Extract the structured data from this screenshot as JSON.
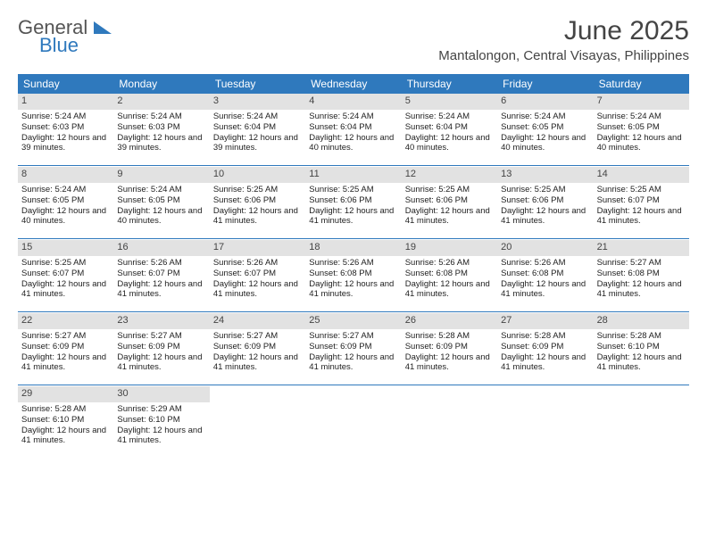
{
  "logo": {
    "general": "General",
    "blue": "Blue"
  },
  "title": "June 2025",
  "location": "Mantalongon, Central Visayas, Philippines",
  "colors": {
    "header_bg": "#2f79bd",
    "header_text": "#ffffff",
    "daynum_bg": "#e2e2e2",
    "page_bg": "#ffffff",
    "text": "#222222"
  },
  "day_headers": [
    "Sunday",
    "Monday",
    "Tuesday",
    "Wednesday",
    "Thursday",
    "Friday",
    "Saturday"
  ],
  "weeks": [
    [
      {
        "n": "1",
        "sr": "Sunrise: 5:24 AM",
        "ss": "Sunset: 6:03 PM",
        "dl": "Daylight: 12 hours and 39 minutes."
      },
      {
        "n": "2",
        "sr": "Sunrise: 5:24 AM",
        "ss": "Sunset: 6:03 PM",
        "dl": "Daylight: 12 hours and 39 minutes."
      },
      {
        "n": "3",
        "sr": "Sunrise: 5:24 AM",
        "ss": "Sunset: 6:04 PM",
        "dl": "Daylight: 12 hours and 39 minutes."
      },
      {
        "n": "4",
        "sr": "Sunrise: 5:24 AM",
        "ss": "Sunset: 6:04 PM",
        "dl": "Daylight: 12 hours and 40 minutes."
      },
      {
        "n": "5",
        "sr": "Sunrise: 5:24 AM",
        "ss": "Sunset: 6:04 PM",
        "dl": "Daylight: 12 hours and 40 minutes."
      },
      {
        "n": "6",
        "sr": "Sunrise: 5:24 AM",
        "ss": "Sunset: 6:05 PM",
        "dl": "Daylight: 12 hours and 40 minutes."
      },
      {
        "n": "7",
        "sr": "Sunrise: 5:24 AM",
        "ss": "Sunset: 6:05 PM",
        "dl": "Daylight: 12 hours and 40 minutes."
      }
    ],
    [
      {
        "n": "8",
        "sr": "Sunrise: 5:24 AM",
        "ss": "Sunset: 6:05 PM",
        "dl": "Daylight: 12 hours and 40 minutes."
      },
      {
        "n": "9",
        "sr": "Sunrise: 5:24 AM",
        "ss": "Sunset: 6:05 PM",
        "dl": "Daylight: 12 hours and 40 minutes."
      },
      {
        "n": "10",
        "sr": "Sunrise: 5:25 AM",
        "ss": "Sunset: 6:06 PM",
        "dl": "Daylight: 12 hours and 41 minutes."
      },
      {
        "n": "11",
        "sr": "Sunrise: 5:25 AM",
        "ss": "Sunset: 6:06 PM",
        "dl": "Daylight: 12 hours and 41 minutes."
      },
      {
        "n": "12",
        "sr": "Sunrise: 5:25 AM",
        "ss": "Sunset: 6:06 PM",
        "dl": "Daylight: 12 hours and 41 minutes."
      },
      {
        "n": "13",
        "sr": "Sunrise: 5:25 AM",
        "ss": "Sunset: 6:06 PM",
        "dl": "Daylight: 12 hours and 41 minutes."
      },
      {
        "n": "14",
        "sr": "Sunrise: 5:25 AM",
        "ss": "Sunset: 6:07 PM",
        "dl": "Daylight: 12 hours and 41 minutes."
      }
    ],
    [
      {
        "n": "15",
        "sr": "Sunrise: 5:25 AM",
        "ss": "Sunset: 6:07 PM",
        "dl": "Daylight: 12 hours and 41 minutes."
      },
      {
        "n": "16",
        "sr": "Sunrise: 5:26 AM",
        "ss": "Sunset: 6:07 PM",
        "dl": "Daylight: 12 hours and 41 minutes."
      },
      {
        "n": "17",
        "sr": "Sunrise: 5:26 AM",
        "ss": "Sunset: 6:07 PM",
        "dl": "Daylight: 12 hours and 41 minutes."
      },
      {
        "n": "18",
        "sr": "Sunrise: 5:26 AM",
        "ss": "Sunset: 6:08 PM",
        "dl": "Daylight: 12 hours and 41 minutes."
      },
      {
        "n": "19",
        "sr": "Sunrise: 5:26 AM",
        "ss": "Sunset: 6:08 PM",
        "dl": "Daylight: 12 hours and 41 minutes."
      },
      {
        "n": "20",
        "sr": "Sunrise: 5:26 AM",
        "ss": "Sunset: 6:08 PM",
        "dl": "Daylight: 12 hours and 41 minutes."
      },
      {
        "n": "21",
        "sr": "Sunrise: 5:27 AM",
        "ss": "Sunset: 6:08 PM",
        "dl": "Daylight: 12 hours and 41 minutes."
      }
    ],
    [
      {
        "n": "22",
        "sr": "Sunrise: 5:27 AM",
        "ss": "Sunset: 6:09 PM",
        "dl": "Daylight: 12 hours and 41 minutes."
      },
      {
        "n": "23",
        "sr": "Sunrise: 5:27 AM",
        "ss": "Sunset: 6:09 PM",
        "dl": "Daylight: 12 hours and 41 minutes."
      },
      {
        "n": "24",
        "sr": "Sunrise: 5:27 AM",
        "ss": "Sunset: 6:09 PM",
        "dl": "Daylight: 12 hours and 41 minutes."
      },
      {
        "n": "25",
        "sr": "Sunrise: 5:27 AM",
        "ss": "Sunset: 6:09 PM",
        "dl": "Daylight: 12 hours and 41 minutes."
      },
      {
        "n": "26",
        "sr": "Sunrise: 5:28 AM",
        "ss": "Sunset: 6:09 PM",
        "dl": "Daylight: 12 hours and 41 minutes."
      },
      {
        "n": "27",
        "sr": "Sunrise: 5:28 AM",
        "ss": "Sunset: 6:09 PM",
        "dl": "Daylight: 12 hours and 41 minutes."
      },
      {
        "n": "28",
        "sr": "Sunrise: 5:28 AM",
        "ss": "Sunset: 6:10 PM",
        "dl": "Daylight: 12 hours and 41 minutes."
      }
    ],
    [
      {
        "n": "29",
        "sr": "Sunrise: 5:28 AM",
        "ss": "Sunset: 6:10 PM",
        "dl": "Daylight: 12 hours and 41 minutes."
      },
      {
        "n": "30",
        "sr": "Sunrise: 5:29 AM",
        "ss": "Sunset: 6:10 PM",
        "dl": "Daylight: 12 hours and 41 minutes."
      },
      null,
      null,
      null,
      null,
      null
    ]
  ]
}
